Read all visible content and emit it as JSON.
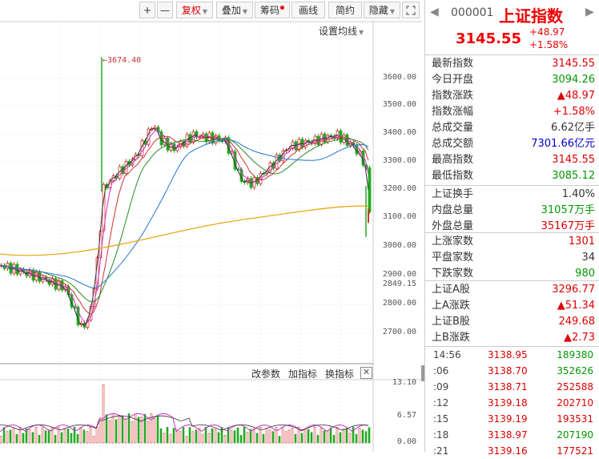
{
  "toolbar": {
    "zoom_in": "+",
    "zoom_out": "—",
    "fuquan": "复权",
    "diejia": "叠加",
    "chouma": "筹码",
    "huaxian": "画线",
    "jianyue": "简约",
    "yincang": "隐藏",
    "fullscreen_icon": "expand-icon",
    "settings_ma": "设置均线"
  },
  "price_axis": {
    "ticks": [
      "3600.00",
      "3500.00",
      "3400.00",
      "3300.00",
      "3200.00",
      "3100.00",
      "3000.00",
      "2900.00",
      "2849.15",
      "2800.00",
      "2700.00"
    ],
    "max_label": "3674.40"
  },
  "indicator_bar": {
    "gai_canshu": "改参数",
    "jia_zhibiao": "加指标",
    "huan_zhibiao": "换指标",
    "close_icon": "close-icon"
  },
  "volume_axis": {
    "ticks": [
      "13.10",
      "6.57",
      "0.00"
    ]
  },
  "header": {
    "code": "000001",
    "name": "上证指数",
    "price": "3145.55",
    "change": "+48.97",
    "change_pct": "+1.58%"
  },
  "stats": [
    {
      "k": "最新指数",
      "v": "3145.55",
      "c": "red"
    },
    {
      "k": "今日开盘",
      "v": "3094.26",
      "c": "green"
    },
    {
      "k": "指数涨跌",
      "v": "▲48.97",
      "c": "red"
    },
    {
      "k": "指数涨幅",
      "v": "+1.58%",
      "c": "red"
    },
    {
      "k": "总成交量",
      "v": "6.62亿手",
      "c": "black"
    },
    {
      "k": "总成交额",
      "v": "7301.66亿元",
      "c": "blue"
    },
    {
      "k": "最高指数",
      "v": "3145.55",
      "c": "red"
    },
    {
      "k": "最低指数",
      "v": "3085.12",
      "c": "green"
    }
  ],
  "stats2": [
    {
      "k": "上证换手",
      "v": "1.40%",
      "c": "black"
    },
    {
      "k": "内盘总量",
      "v": "31057万手",
      "c": "green"
    },
    {
      "k": "外盘总量",
      "v": "35167万手",
      "c": "red"
    }
  ],
  "stats3": [
    {
      "k": "上涨家数",
      "v": "1301",
      "c": "red"
    },
    {
      "k": "平盘家数",
      "v": "34",
      "c": "black"
    },
    {
      "k": "下跌家数",
      "v": "980",
      "c": "green"
    }
  ],
  "stats4": [
    {
      "k": "上证A股",
      "v": "3296.77",
      "c": "red"
    },
    {
      "k": "上A涨跌",
      "v": "▲51.34",
      "c": "red"
    },
    {
      "k": "上证B股",
      "v": "249.68",
      "c": "red"
    },
    {
      "k": "上B涨跌",
      "v": "▲2.73",
      "c": "red"
    }
  ],
  "ticks": [
    {
      "t": "14:56",
      "p": "3138.95",
      "q": "189380",
      "c": "green"
    },
    {
      "t": ":06",
      "p": "3138.70",
      "q": "352626",
      "c": "green"
    },
    {
      "t": ":09",
      "p": "3138.71",
      "q": "252588",
      "c": "red"
    },
    {
      "t": ":12",
      "p": "3139.18",
      "q": "202710",
      "c": "red"
    },
    {
      "t": ":15",
      "p": "3139.19",
      "q": "193531",
      "c": "red"
    },
    {
      "t": ":18",
      "p": "3138.97",
      "q": "207190",
      "c": "green"
    },
    {
      "t": ":21",
      "p": "3139.16",
      "q": "177521",
      "c": "red"
    }
  ]
}
